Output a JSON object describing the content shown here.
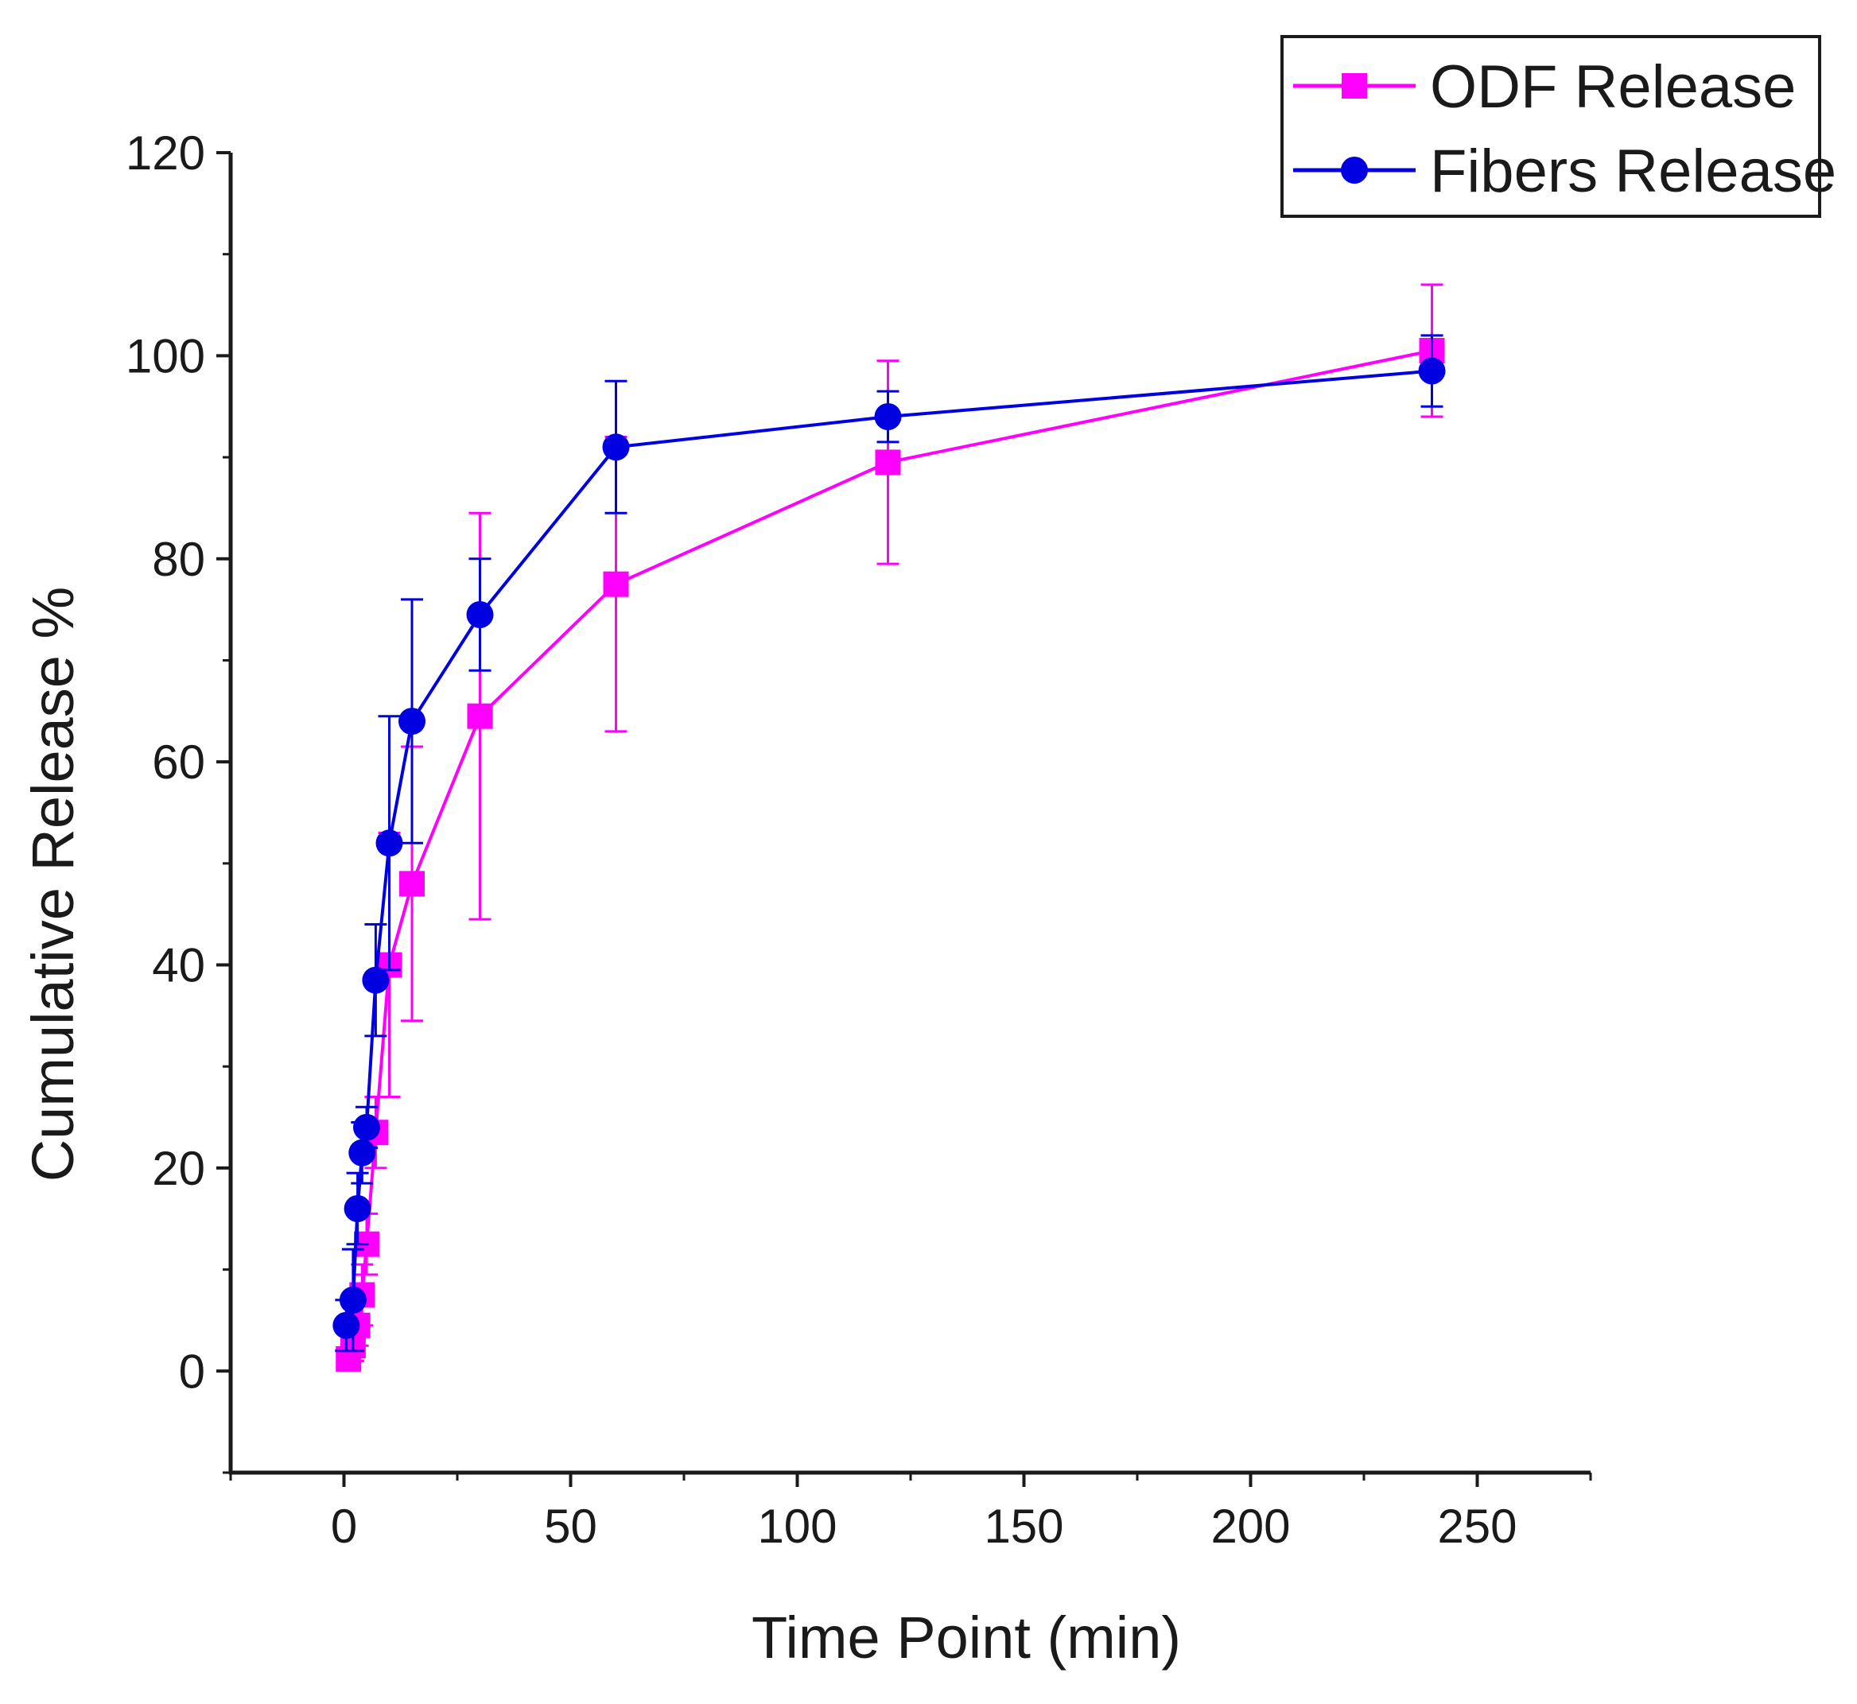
{
  "chart_data": {
    "type": "line",
    "title": "",
    "xlabel": "Time Point (min)",
    "ylabel": "Cumulative Release %",
    "xlim": [
      -25,
      275
    ],
    "ylim": [
      -10,
      120
    ],
    "xticks": [
      0,
      50,
      100,
      150,
      200,
      250
    ],
    "yticks": [
      0,
      20,
      40,
      60,
      80,
      100,
      120
    ],
    "grid": false,
    "legend_position": "top-right",
    "series": [
      {
        "name": "ODF Release",
        "color": "#ff00ff",
        "marker": "square",
        "x": [
          1,
          2,
          3,
          4,
          5,
          7,
          10,
          15,
          30,
          60,
          120,
          240
        ],
        "y": [
          1.2,
          2.5,
          4.5,
          7.5,
          12.5,
          23.5,
          40,
          48,
          64.5,
          77.5,
          89.5,
          100.5
        ],
        "error": [
          0.8,
          1.5,
          2,
          3,
          3,
          3.5,
          13,
          13.5,
          20,
          14.5,
          10,
          6.5
        ]
      },
      {
        "name": "Fibers Release",
        "color": "#0000e0",
        "marker": "circle",
        "x": [
          0.5,
          2,
          3,
          4,
          5,
          7,
          10,
          15,
          30,
          60,
          120,
          240
        ],
        "y": [
          4.5,
          7,
          16,
          21.5,
          24,
          38.5,
          52,
          64,
          74.5,
          91,
          94,
          98.5
        ],
        "error": [
          2.5,
          5,
          3.5,
          3,
          2,
          5.5,
          12.5,
          12,
          5.5,
          6.5,
          2.5,
          3.5
        ]
      }
    ]
  }
}
